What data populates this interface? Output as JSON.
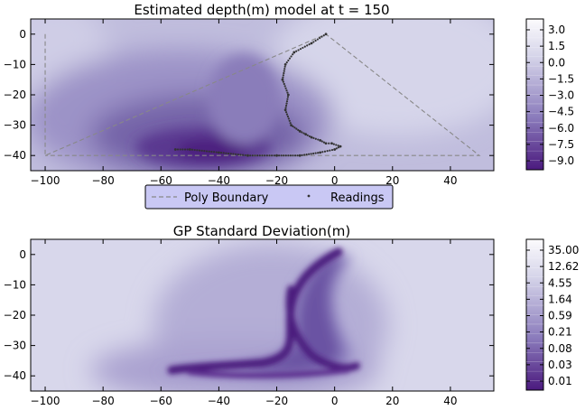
{
  "chart_data": [
    {
      "type": "heatmap",
      "title": "Estimated depth(m) model at t = 150",
      "xlabel": "",
      "ylabel": "",
      "xlim": [
        -105,
        55
      ],
      "ylim": [
        -45,
        5
      ],
      "xticks": [
        -100,
        -80,
        -60,
        -40,
        -20,
        0,
        20,
        40
      ],
      "yticks": [
        0,
        -10,
        -20,
        -30,
        -40
      ],
      "colorbar": {
        "ticks": [
          "3.0",
          "1.5",
          "0.0",
          "−1.5",
          "−3.0",
          "−4.5",
          "−6.0",
          "−7.5",
          "−9.0"
        ],
        "range": [
          -9.0,
          3.0
        ]
      },
      "colormap": {
        "low": "#4b1a7e",
        "high": "#fcfbfd"
      },
      "legend": {
        "position": "bottom-center",
        "entries": [
          {
            "label": "Poly Boundary",
            "style": "dashed-line",
            "color": "#888888"
          },
          {
            "label": "Readings",
            "style": "point",
            "color": "#333333"
          }
        ]
      },
      "series": [
        {
          "name": "Poly Boundary",
          "x": [
            -100,
            -100,
            -3,
            50,
            -100
          ],
          "y": [
            0,
            -40,
            0,
            -40,
            -40
          ]
        },
        {
          "name": "Readings",
          "x": [
            -3,
            -8,
            -14,
            -17,
            -18,
            -16,
            -17,
            -15,
            -12,
            -10,
            -8,
            -5,
            -3,
            -1,
            2,
            0,
            -5,
            -12,
            -20,
            -30,
            -40,
            -50,
            -55
          ],
          "y": [
            0,
            -3,
            -6,
            -10,
            -15,
            -20,
            -25,
            -30,
            -32,
            -33,
            -34,
            -35,
            -36,
            -36,
            -37,
            -38,
            -39,
            -40,
            -40,
            -40,
            -39,
            -38,
            -38
          ]
        }
      ]
    },
    {
      "type": "heatmap",
      "title": "GP Standard Deviation(m)",
      "xlabel": "",
      "ylabel": "",
      "xlim": [
        -105,
        55
      ],
      "ylim": [
        -45,
        5
      ],
      "xticks": [
        -100,
        -80,
        -60,
        -40,
        -20,
        0,
        20,
        40
      ],
      "yticks": [
        0,
        -10,
        -20,
        -30,
        -40
      ],
      "colorbar": {
        "ticks": [
          "35.00",
          "12.62",
          "4.55",
          "1.64",
          "0.59",
          "0.21",
          "0.08",
          "0.03",
          "0.01"
        ],
        "scale": "log"
      },
      "colormap": {
        "low": "#4b1a7e",
        "high": "#fcfbfd"
      }
    }
  ]
}
